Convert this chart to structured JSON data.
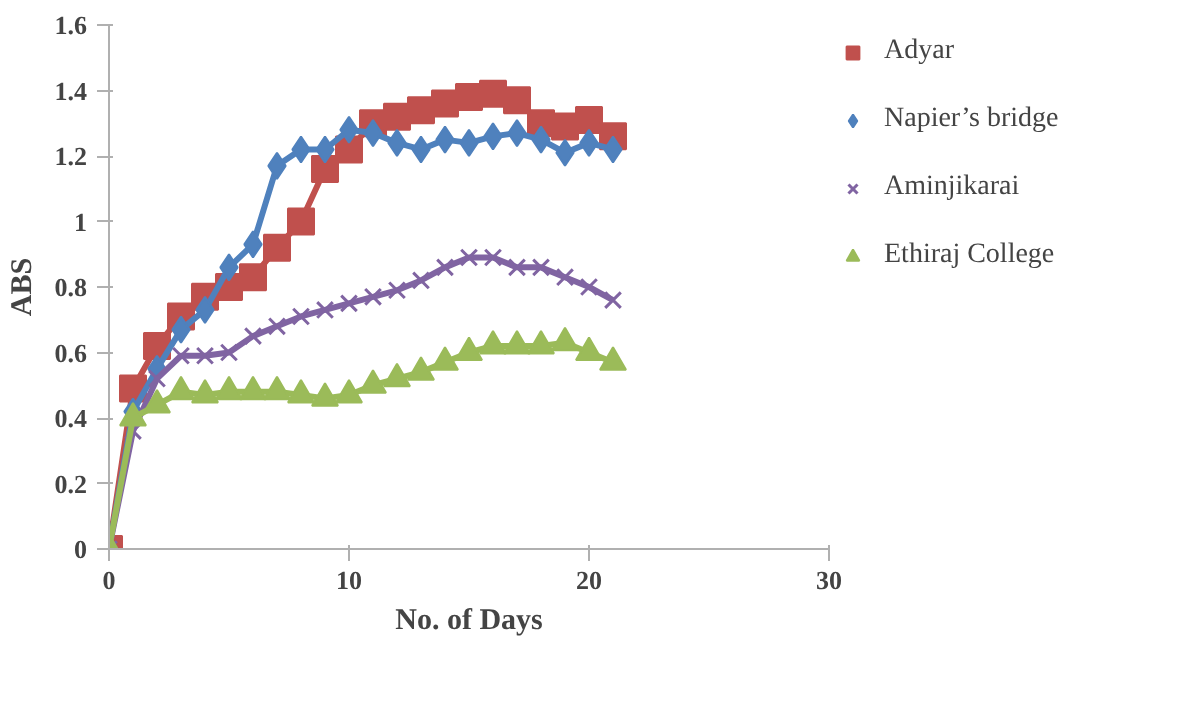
{
  "chart_data": {
    "type": "line",
    "xlabel": "No. of Days",
    "ylabel": "ABS",
    "x": [
      0,
      1,
      2,
      3,
      4,
      5,
      6,
      7,
      8,
      9,
      10,
      11,
      12,
      13,
      14,
      15,
      16,
      17,
      18,
      19,
      20,
      21
    ],
    "xlim": [
      0,
      30
    ],
    "xticks": [
      0,
      10,
      20,
      30
    ],
    "ylim": [
      0,
      1.6
    ],
    "yticks": [
      0,
      0.2,
      0.4,
      0.6,
      0.8,
      1,
      1.2,
      1.4,
      1.6
    ],
    "legend": "right",
    "grid": false,
    "series": [
      {
        "name": "Adyar",
        "color": "#c0504d",
        "marker": "square",
        "values": [
          0,
          0.49,
          0.62,
          0.71,
          0.77,
          0.8,
          0.83,
          0.92,
          1.0,
          1.16,
          1.22,
          1.3,
          1.32,
          1.34,
          1.36,
          1.38,
          1.39,
          1.37,
          1.3,
          1.29,
          1.31,
          1.26
        ]
      },
      {
        "name": "Napier’s bridge",
        "color": "#4f81bd",
        "marker": "diamond",
        "values": [
          0,
          0.42,
          0.55,
          0.67,
          0.73,
          0.86,
          0.93,
          1.17,
          1.22,
          1.22,
          1.28,
          1.27,
          1.24,
          1.22,
          1.25,
          1.24,
          1.26,
          1.27,
          1.25,
          1.21,
          1.24,
          1.22
        ]
      },
      {
        "name": "Aminjikarai",
        "color": "#8064a2",
        "marker": "cross",
        "values": [
          0,
          0.36,
          0.52,
          0.59,
          0.59,
          0.6,
          0.65,
          0.68,
          0.71,
          0.73,
          0.75,
          0.77,
          0.79,
          0.82,
          0.86,
          0.89,
          0.89,
          0.86,
          0.86,
          0.83,
          0.8,
          0.76
        ]
      },
      {
        "name": "Ethiraj College",
        "color": "#9bbb59",
        "marker": "triangle",
        "values": [
          0,
          0.4,
          0.44,
          0.48,
          0.47,
          0.48,
          0.48,
          0.48,
          0.47,
          0.46,
          0.47,
          0.5,
          0.52,
          0.54,
          0.57,
          0.6,
          0.62,
          0.62,
          0.62,
          0.63,
          0.6,
          0.57
        ]
      }
    ]
  }
}
